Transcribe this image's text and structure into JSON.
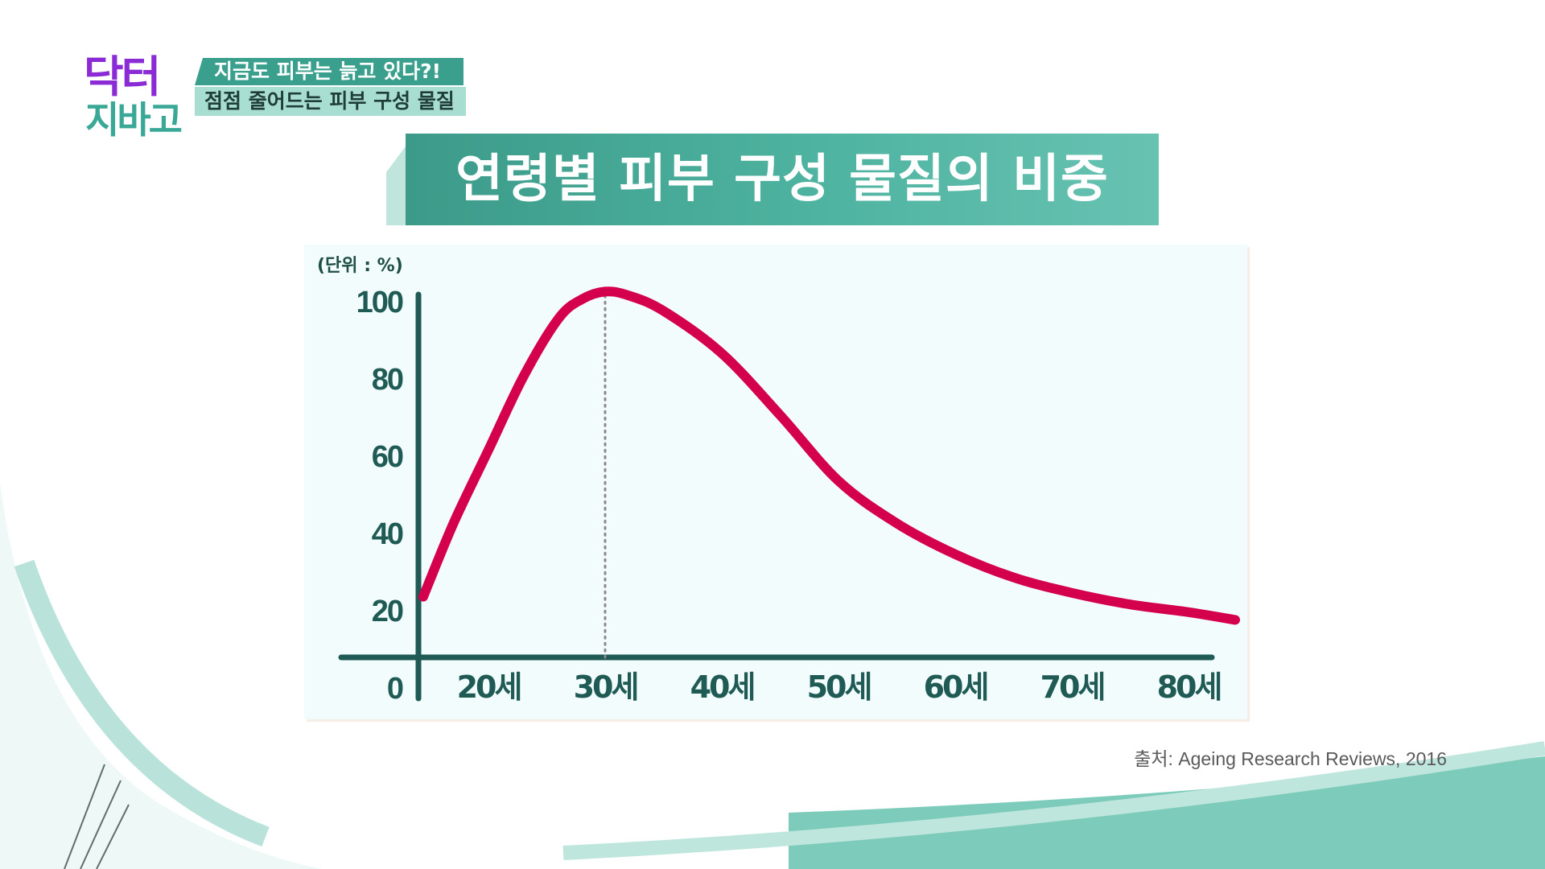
{
  "show": {
    "logo_line1": "닥터",
    "logo_line2": "지바고",
    "caption_top": "지금도 피부는 늙고 있다?!",
    "caption_bottom": "점점 줄어드는 피부 구성 물질"
  },
  "colors": {
    "teal": "#3a9f8c",
    "curve": "#d4004d",
    "axis": "#1f5a55",
    "logo_purple": "#8a2bd6"
  },
  "chart_data": {
    "type": "line",
    "title": "연령별 피부 구성 물질의 비중",
    "unit_label": "(단위 : %)",
    "y_ticks": [
      "100",
      "80",
      "60",
      "40",
      "20",
      "0"
    ],
    "x_ticks": [
      "20세",
      "30세",
      "40세",
      "50세",
      "60세",
      "70세",
      "80세"
    ],
    "ylim": [
      0,
      100
    ],
    "xlim": [
      14,
      85
    ],
    "x": [
      14,
      17,
      20,
      23,
      26,
      28,
      30,
      32,
      35,
      40,
      45,
      50,
      55,
      60,
      65,
      70,
      75,
      80,
      84
    ],
    "series": [
      {
        "values": [
          23,
          42,
          61,
          80,
          95,
          100,
          102,
          101,
          97,
          86,
          70,
          53,
          42,
          34,
          28,
          24,
          21,
          19,
          17
        ]
      }
    ],
    "peak_marker_x": 30,
    "grid": false
  },
  "source": "출처: Ageing Research Reviews, 2016"
}
